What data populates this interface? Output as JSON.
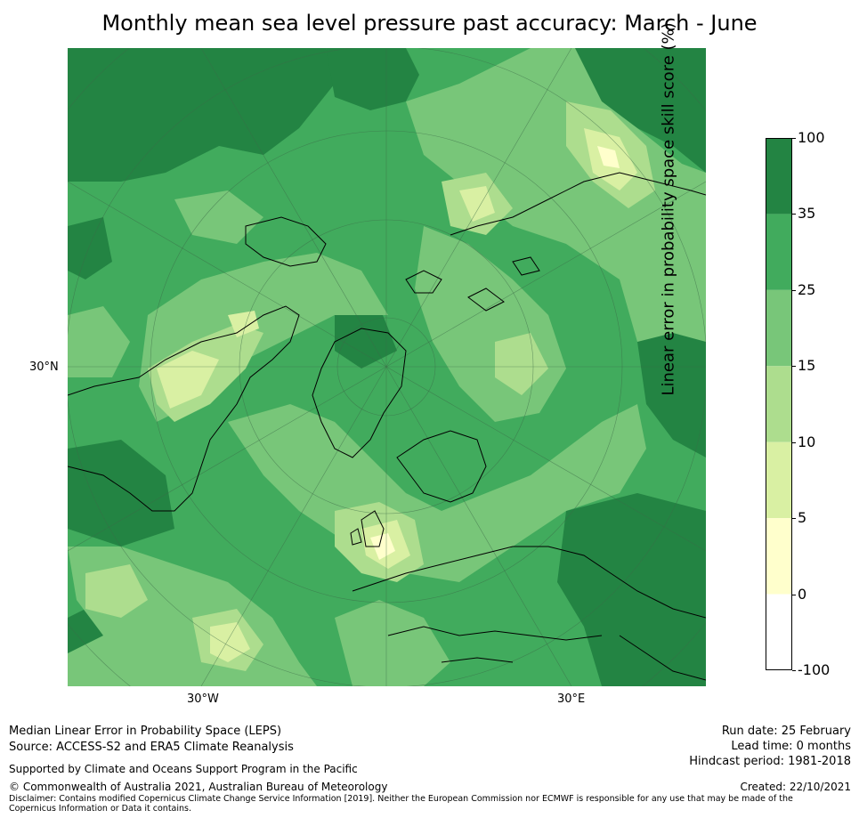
{
  "title": "Monthly mean sea level pressure past accuracy: March - June",
  "map": {
    "lat_label": "30°N",
    "lon_labels": [
      "30°W",
      "30°E"
    ]
  },
  "colorbar": {
    "title": "Linear error in probability space skill score (%)",
    "ticks": [
      "100",
      "35",
      "25",
      "15",
      "10",
      "5",
      "0",
      "-100"
    ],
    "classes": [
      {
        "range": "35 to 100",
        "color": "#238443"
      },
      {
        "range": "25 to 35",
        "color": "#41ab5d"
      },
      {
        "range": "15 to 25",
        "color": "#78c679"
      },
      {
        "range": "10 to 15",
        "color": "#addd8e"
      },
      {
        "range": "5 to 10",
        "color": "#d9f0a3"
      },
      {
        "range": "0 to 5",
        "color": "#ffffcc"
      },
      {
        "range": "-100 to 0",
        "color": "#ffffff"
      }
    ]
  },
  "footer": {
    "left1": "Median Linear Error in Probability Space (LEPS)",
    "left2": "Source: ACCESS-S2 and ERA5 Climate Reanalysis",
    "supported": "Supported by Climate and Oceans Support Program in the Pacific",
    "copyright": "© Commonwealth of Australia 2021, Australian Bureau of Meteorology",
    "disclaimer": "Disclaimer: Contains modified Copernicus Climate Change Service Information [2019]. Neither the European Commission nor ECMWF is responsible for any use that may be made of the Copernicus Information or Data it contains.",
    "run_date": "Run date: 25 February",
    "lead_time": "Lead time: 0 months",
    "hindcast": "Hindcast period: 1981-2018",
    "created": "Created: 22/10/2021"
  }
}
